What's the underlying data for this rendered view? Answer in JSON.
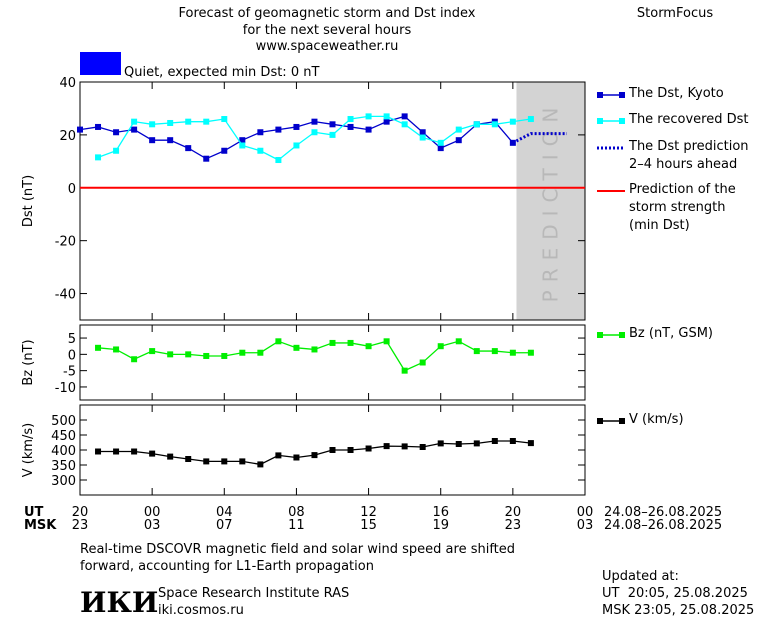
{
  "header": {
    "title_lines": [
      "Forecast of geomagnetic storm and Dst index",
      "for the next several hours",
      "www.spaceweather.ru"
    ],
    "brand": "StormFocus",
    "status": {
      "label": "Quiet, expected min Dst: 0 nT",
      "color": "#0000ff"
    }
  },
  "chart_data": [
    {
      "type": "line",
      "ylabel": "Dst (nT)",
      "xlim": [
        0,
        28
      ],
      "ylim": [
        -50,
        40
      ],
      "yticks": [
        -40,
        -20,
        0,
        20,
        40
      ],
      "prediction_region": {
        "label": "PREDICTION",
        "start": 24.2,
        "color": "#d3d3d3"
      },
      "series": [
        {
          "name": "The Dst, Kyoto",
          "color": "#0000cc",
          "style": "solid",
          "x": [
            0,
            1,
            2,
            3,
            4,
            5,
            6,
            7,
            8,
            9,
            10,
            11,
            12,
            13,
            14,
            15,
            16,
            17,
            18,
            19,
            20,
            21,
            22,
            23,
            24
          ],
          "values": [
            22,
            23,
            21,
            22,
            18,
            18,
            15,
            11,
            14,
            18,
            21,
            22,
            23,
            25,
            24,
            23,
            22,
            25,
            27,
            21,
            15,
            18,
            24,
            25,
            17
          ]
        },
        {
          "name": "The recovered Dst",
          "color": "#00ffff",
          "style": "solid",
          "x": [
            1,
            2,
            3,
            4,
            5,
            6,
            7,
            8,
            9,
            10,
            11,
            12,
            13,
            14,
            15,
            16,
            17,
            18,
            19,
            20,
            21,
            22,
            23,
            24,
            25
          ],
          "values": [
            11.5,
            14,
            25,
            24,
            24.5,
            25,
            25,
            26,
            16,
            14,
            10.5,
            16,
            21,
            20,
            26,
            27,
            27,
            24,
            19,
            17,
            22,
            24,
            24,
            25,
            26
          ]
        },
        {
          "name": "The Dst prediction 2–4 hours ahead",
          "color": "#0000cc",
          "style": "dotted",
          "x": [
            24,
            25,
            26,
            27
          ],
          "values": [
            17,
            20.5,
            20.5,
            20.5
          ]
        }
      ],
      "threshold": {
        "name": "Prediction of the storm strength (min Dst)",
        "value": 0,
        "color": "#ff0000"
      }
    },
    {
      "type": "line",
      "ylabel": "Bz (nT)",
      "xlim": [
        0,
        28
      ],
      "ylim": [
        -14,
        9
      ],
      "yticks": [
        5,
        0,
        -5,
        -10
      ],
      "series": [
        {
          "name": "Bz (nT, GSM)",
          "color": "#00ee00",
          "style": "solid",
          "x": [
            1,
            2,
            3,
            4,
            5,
            6,
            7,
            8,
            9,
            10,
            11,
            12,
            13,
            14,
            15,
            16,
            17,
            18,
            19,
            20,
            21,
            22,
            23,
            24,
            25
          ],
          "values": [
            2,
            1.5,
            -1.5,
            1,
            0,
            0,
            -0.5,
            -0.5,
            0.5,
            0.5,
            4,
            2,
            1.5,
            3.5,
            3.5,
            2.5,
            4,
            -5,
            -2.5,
            2.5,
            4,
            1,
            1,
            0.5,
            0.5
          ]
        }
      ]
    },
    {
      "type": "line",
      "ylabel": "V (km/s)",
      "xlim": [
        0,
        28
      ],
      "ylim": [
        250,
        550
      ],
      "yticks": [
        500,
        450,
        400,
        350,
        300
      ],
      "xticks": [
        {
          "value": 0,
          "label": "20"
        },
        {
          "value": 4,
          "label": "00"
        },
        {
          "value": 8,
          "label": "04"
        },
        {
          "value": 12,
          "label": "08"
        },
        {
          "value": 16,
          "label": "12"
        },
        {
          "value": 20,
          "label": "16"
        },
        {
          "value": 24,
          "label": "20"
        },
        {
          "value": 28,
          "label": "00"
        }
      ],
      "msk_labels": [
        "23",
        "03",
        "07",
        "11",
        "15",
        "19",
        "23",
        "03"
      ],
      "ut_label": "UT",
      "msk_label": "MSK",
      "date_range": "24.08–26.08.2025",
      "series": [
        {
          "name": "V (km/s)",
          "color": "#000000",
          "style": "solid",
          "x": [
            1,
            2,
            3,
            4,
            5,
            6,
            7,
            8,
            9,
            10,
            11,
            12,
            13,
            14,
            15,
            16,
            17,
            18,
            19,
            20,
            21,
            22,
            23,
            24,
            25
          ],
          "values": [
            395,
            395,
            395,
            388,
            378,
            370,
            362,
            362,
            362,
            352,
            382,
            375,
            383,
            400,
            400,
            405,
            413,
            412,
            410,
            422,
            420,
            422,
            430,
            430,
            423
          ]
        }
      ]
    }
  ],
  "footer": {
    "note_lines": [
      "Real-time DSCOVR magnetic field and solar wind speed are shifted",
      "forward, accounting for L1-Earth propagation"
    ],
    "logo": "ИКИ",
    "institute": "Space Research Institute RAS",
    "site": "iki.cosmos.ru",
    "updated": [
      "Updated at:",
      "UT  20:05, 25.08.2025",
      "MSK 23:05, 25.08.2025"
    ]
  }
}
